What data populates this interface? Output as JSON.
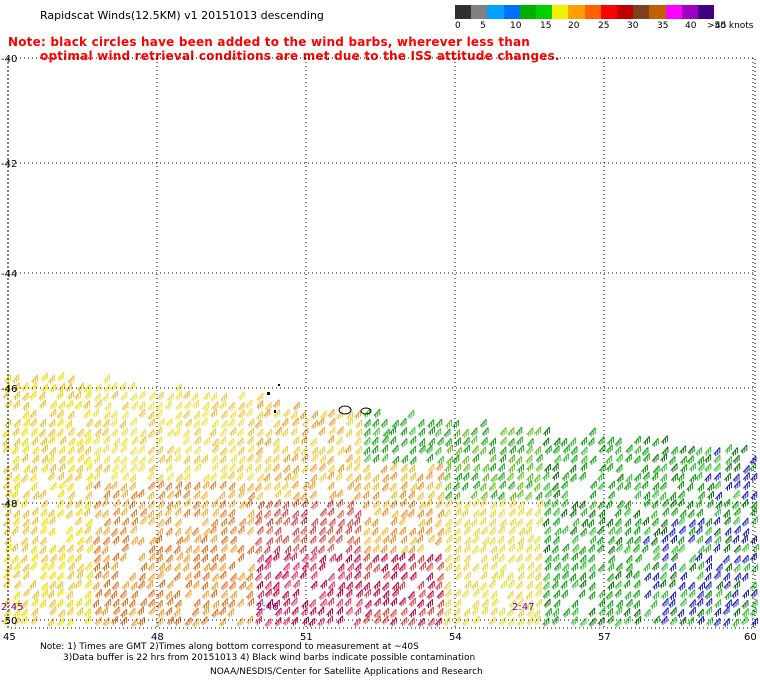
{
  "title": "Rapidscat Winds(12.5KM) v1 20151013 descending",
  "note_line1": "Note: black circles have been added to the wind barbs, wherever less than",
  "note_line2": "optimal wind retrieval conditions are met due to the ISS attitude changes.",
  "scale": {
    "labels": [
      "0",
      "5",
      "10",
      "15",
      "20",
      "25",
      "30",
      "35",
      "40",
      "45",
      ">50 knots"
    ],
    "colors": [
      "#303030",
      "#808080",
      "#00a0ff",
      "#0070ff",
      "#00b000",
      "#00d000",
      "#f0f000",
      "#ffa000",
      "#ff6000",
      "#ff0000",
      "#c00000",
      "#804020",
      "#c06000",
      "#ff00ff",
      "#a000c0",
      "#400080"
    ]
  },
  "map": {
    "lon_labels": [
      "45",
      "48",
      "51",
      "54",
      "57",
      "60"
    ],
    "lat_labels": [
      "-40",
      "-42",
      "-44",
      "-46",
      "-48",
      "-50"
    ],
    "time_labels": [
      "2:45",
      "2:46",
      "2:47"
    ],
    "time_color": "#800080"
  },
  "footer": {
    "line1": "Note: 1) Times are GMT 2)Times along bottom correspond to measurement at ~40S",
    "line2": "3)Data buffer is 22 hrs from 20151013 4) Black wind barbs indicate possible contamination",
    "line3": "NOAA/NESDIS/Center for Satellite Applications and Research"
  }
}
